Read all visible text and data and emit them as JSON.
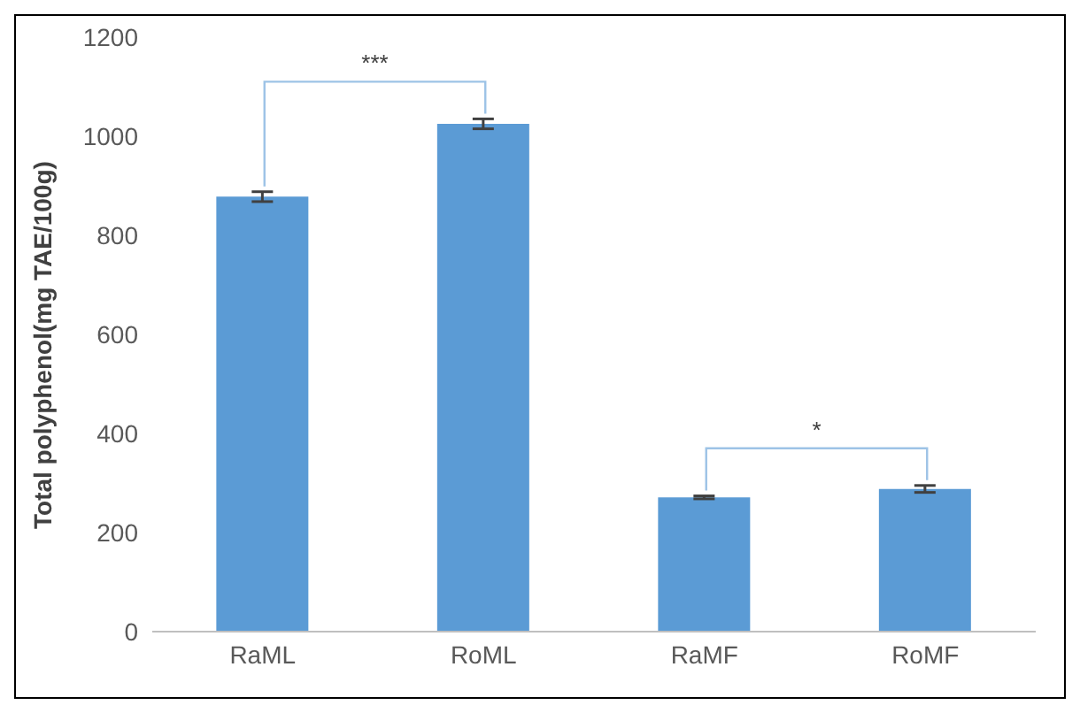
{
  "chart_data": {
    "type": "bar",
    "ylabel": "Total polyphenol(mg TAE/100g)",
    "categories": [
      "RaML",
      "RoML",
      "RaMF",
      "RoMF"
    ],
    "values": [
      878,
      1025,
      271,
      288
    ],
    "errors": [
      10,
      10,
      3,
      7
    ],
    "color": "#5b9bd5",
    "ylim": [
      0,
      1200
    ],
    "yticks": [
      0,
      200,
      400,
      600,
      800,
      1000,
      1200
    ],
    "grid": false,
    "legend": false,
    "annotations": [
      "***",
      "*"
    ]
  }
}
